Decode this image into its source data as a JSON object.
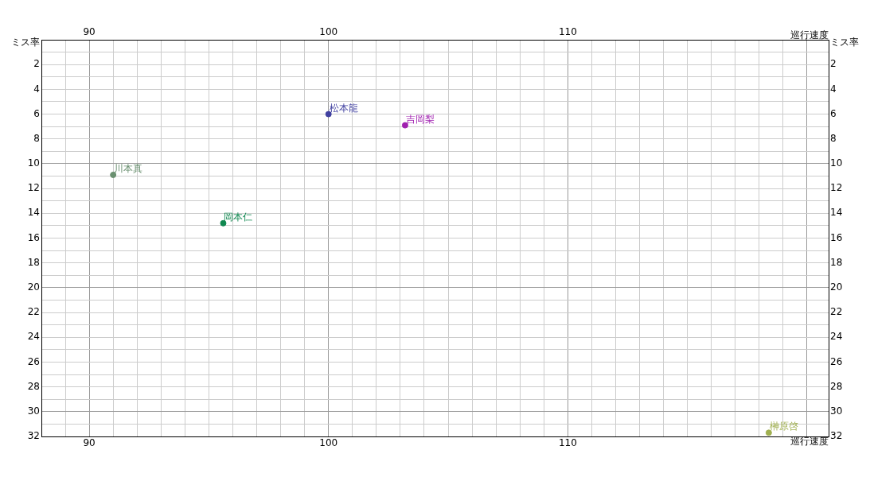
{
  "chart_data": {
    "type": "scatter",
    "xlabel": "巡行速度",
    "x2label": "巡行速度",
    "ylabel": "ミス率",
    "y2label": "ミス率",
    "xlim": [
      88,
      120.9
    ],
    "xticks": [
      {
        "value": 88,
        "label": null
      },
      {
        "value": 89,
        "label": null
      },
      90,
      {
        "value": 91,
        "label": null
      },
      {
        "value": 92,
        "label": null
      },
      {
        "value": 93,
        "label": null
      },
      {
        "value": 94,
        "label": null
      },
      {
        "value": 95,
        "label": null
      },
      {
        "value": 96,
        "label": null
      },
      {
        "value": 97,
        "label": null
      },
      {
        "value": 98,
        "label": null
      },
      {
        "value": 99,
        "label": null
      },
      100,
      {
        "value": 101,
        "label": null
      },
      {
        "value": 102,
        "label": null
      },
      {
        "value": 103,
        "label": null
      },
      {
        "value": 104,
        "label": null
      },
      {
        "value": 105,
        "label": null
      },
      {
        "value": 106,
        "label": null
      },
      {
        "value": 107,
        "label": null
      },
      {
        "value": 108,
        "label": null
      },
      {
        "value": 109,
        "label": null
      },
      110,
      {
        "value": 111,
        "label": null
      },
      {
        "value": 112,
        "label": null
      },
      {
        "value": 113,
        "label": null
      },
      {
        "value": 114,
        "label": null
      },
      {
        "value": 115,
        "label": null
      },
      {
        "value": 116,
        "label": null
      },
      {
        "value": 117,
        "label": null
      },
      {
        "value": 118,
        "label": null
      },
      {
        "value": 119,
        "label": null
      },
      {
        "value": 120,
        "label": null
      }
    ],
    "x2lim": [
      88,
      120.9
    ],
    "x2ticks": [
      90,
      100,
      110
    ],
    "ylim": [
      32,
      0
    ],
    "yticks": [
      {
        "value": 0,
        "label": null
      },
      {
        "value": 1,
        "label": null
      },
      2,
      {
        "value": 3,
        "label": null
      },
      4,
      {
        "value": 5,
        "label": null
      },
      6,
      {
        "value": 7,
        "label": null
      },
      8,
      {
        "value": 9,
        "label": null
      },
      10,
      {
        "value": 11,
        "label": null
      },
      12,
      {
        "value": 13,
        "label": null
      },
      14,
      {
        "value": 15,
        "label": null
      },
      16,
      {
        "value": 17,
        "label": null
      },
      18,
      {
        "value": 19,
        "label": null
      },
      20,
      {
        "value": 21,
        "label": null
      },
      22,
      {
        "value": 23,
        "label": null
      },
      24,
      {
        "value": 25,
        "label": null
      },
      26,
      {
        "value": 27,
        "label": null
      },
      28,
      {
        "value": 29,
        "label": null
      },
      30,
      {
        "value": 31,
        "label": null
      },
      32
    ],
    "y2lim": [
      32,
      0
    ],
    "y2ticks": [
      2,
      4,
      6,
      8,
      10,
      12,
      14,
      16,
      18,
      20,
      22,
      24,
      26,
      28,
      30,
      32
    ],
    "grid": true,
    "marker": "circle",
    "series": [
      {
        "name": "松本龍",
        "color": "#4040a0",
        "x": [
          100.0
        ],
        "values": [
          6.0
        ]
      },
      {
        "name": "吉岡梨",
        "color": "#a020b0",
        "x": [
          103.2
        ],
        "values": [
          6.9
        ]
      },
      {
        "name": "川本真",
        "color": "#6a9070",
        "x": [
          91.0
        ],
        "values": [
          10.9
        ]
      },
      {
        "name": "岡本仁",
        "color": "#108850",
        "x": [
          95.6
        ],
        "values": [
          14.8
        ]
      },
      {
        "name": "榊原啓",
        "color": "#a0b050",
        "x": [
          118.4
        ],
        "values": [
          31.7
        ]
      }
    ]
  }
}
